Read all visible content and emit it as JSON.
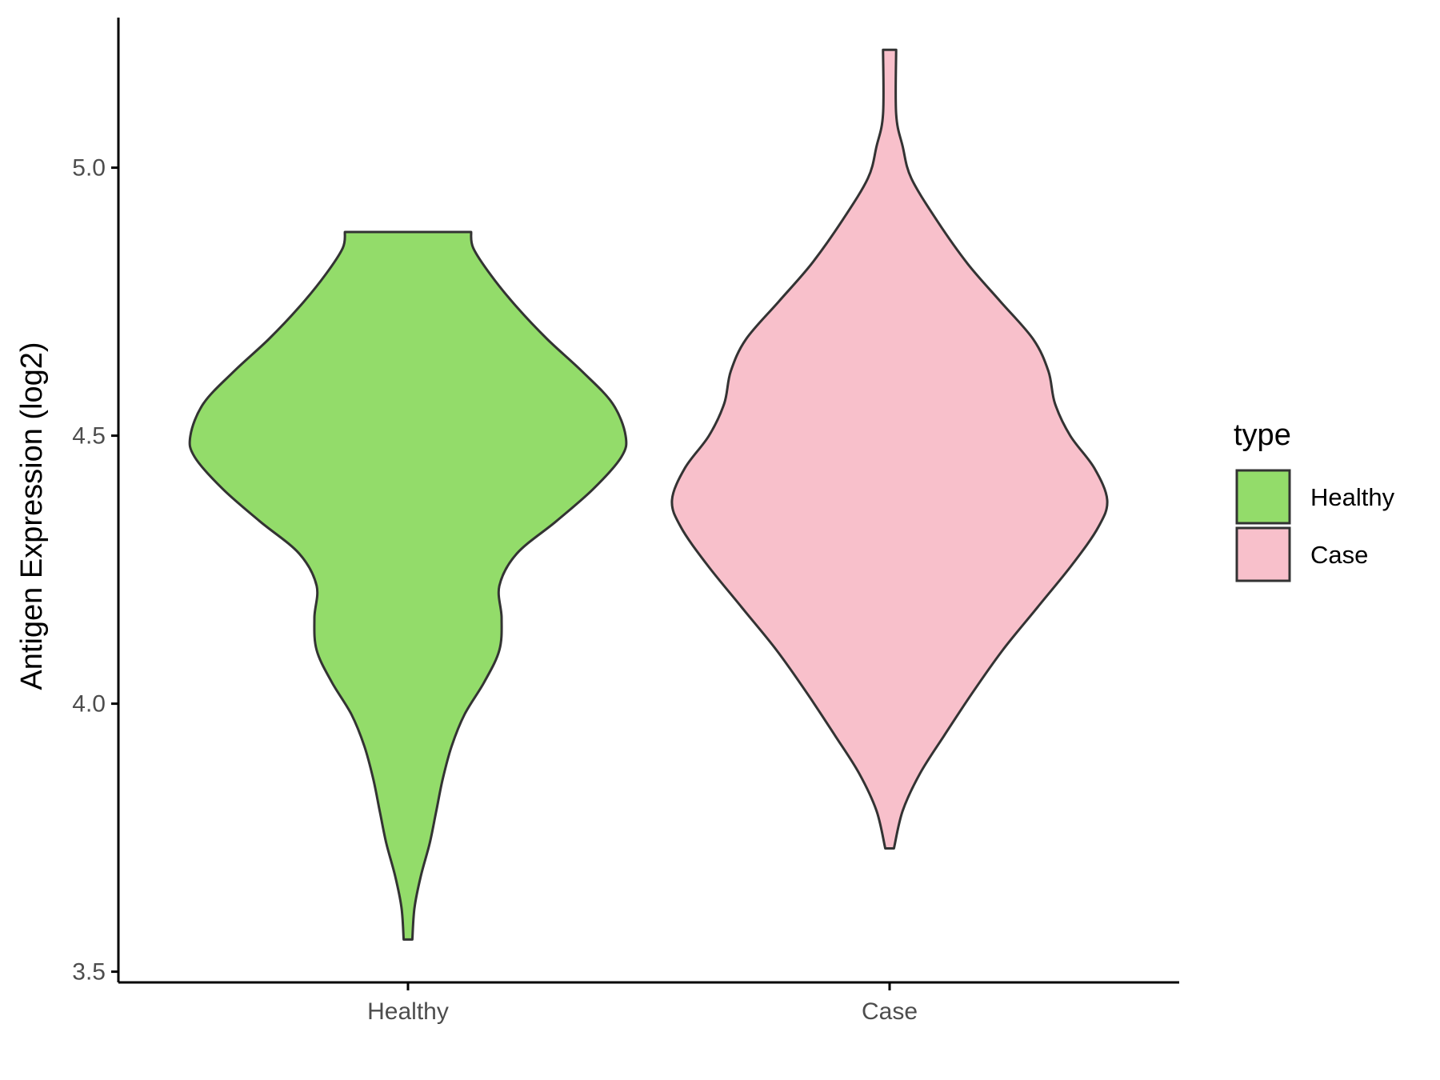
{
  "chart_data": {
    "type": "violin",
    "categories": [
      "Healthy",
      "Case"
    ],
    "ylabel": "Antigen Expression (log2)",
    "xlabel": "",
    "ylim": [
      3.48,
      5.28
    ],
    "yticks": [
      3.5,
      4.0,
      4.5,
      5.0
    ],
    "ytick_labels": [
      "3.5",
      "4.0",
      "4.5",
      "5.0"
    ],
    "grid": false,
    "legend": {
      "title": "type",
      "position": "right",
      "entries": [
        "Healthy",
        "Case"
      ]
    },
    "series": [
      {
        "category": "Healthy",
        "color": "#93dc6a",
        "y_min": 3.56,
        "y_max": 4.88,
        "density_profile": [
          [
            3.56,
            0.02
          ],
          [
            3.62,
            0.03
          ],
          [
            3.68,
            0.06
          ],
          [
            3.74,
            0.1
          ],
          [
            3.8,
            0.13
          ],
          [
            3.86,
            0.16
          ],
          [
            3.92,
            0.2
          ],
          [
            3.98,
            0.26
          ],
          [
            4.04,
            0.35
          ],
          [
            4.1,
            0.42
          ],
          [
            4.16,
            0.43
          ],
          [
            4.22,
            0.42
          ],
          [
            4.28,
            0.5
          ],
          [
            4.34,
            0.68
          ],
          [
            4.4,
            0.85
          ],
          [
            4.46,
            0.98
          ],
          [
            4.5,
            1.0
          ],
          [
            4.56,
            0.94
          ],
          [
            4.62,
            0.8
          ],
          [
            4.68,
            0.64
          ],
          [
            4.74,
            0.5
          ],
          [
            4.8,
            0.38
          ],
          [
            4.85,
            0.3
          ],
          [
            4.88,
            0.29
          ]
        ]
      },
      {
        "category": "Case",
        "color": "#f8c0cb",
        "y_min": 3.73,
        "y_max": 5.22,
        "density_profile": [
          [
            3.73,
            0.02
          ],
          [
            3.8,
            0.06
          ],
          [
            3.87,
            0.14
          ],
          [
            3.94,
            0.25
          ],
          [
            4.02,
            0.38
          ],
          [
            4.1,
            0.52
          ],
          [
            4.18,
            0.68
          ],
          [
            4.26,
            0.84
          ],
          [
            4.33,
            0.96
          ],
          [
            4.38,
            1.0
          ],
          [
            4.44,
            0.94
          ],
          [
            4.5,
            0.83
          ],
          [
            4.56,
            0.76
          ],
          [
            4.62,
            0.73
          ],
          [
            4.68,
            0.66
          ],
          [
            4.75,
            0.51
          ],
          [
            4.82,
            0.36
          ],
          [
            4.9,
            0.22
          ],
          [
            4.98,
            0.1
          ],
          [
            5.04,
            0.06
          ],
          [
            5.1,
            0.03
          ],
          [
            5.22,
            0.03
          ]
        ]
      }
    ]
  }
}
